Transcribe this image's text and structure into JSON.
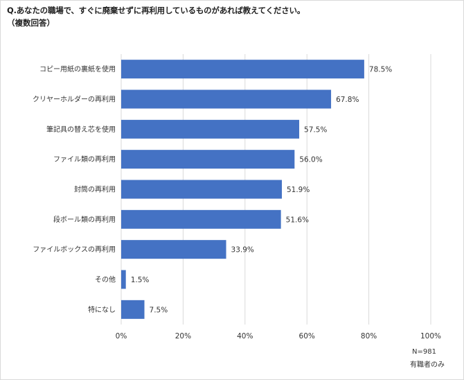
{
  "header": {
    "title": "Q.あなたの職場で、すぐに廃棄せずに再利用しているものがあれば教えてください。",
    "subtitle": "（複数回答）"
  },
  "footer": {
    "sample_size": "N=981",
    "population": "有職者のみ"
  },
  "colors": {
    "bar": "#4472c4",
    "grid": "#d9d9d9"
  },
  "chart_data": {
    "type": "bar",
    "orientation": "horizontal",
    "title": "Q.あなたの職場で、すぐに廃棄せずに再利用しているものがあれば教えてください。",
    "categories": [
      "コピー用紙の裏紙を使用",
      "クリヤーホルダーの再利用",
      "筆記具の替え芯を使用",
      "ファイル類の再利用",
      "封筒の再利用",
      "段ボール類の再利用",
      "ファイルボックスの再利用",
      "その他",
      "特になし"
    ],
    "values": [
      78.5,
      67.8,
      57.5,
      56.0,
      51.9,
      51.6,
      33.9,
      1.5,
      7.5
    ],
    "value_labels": [
      "78.5%",
      "67.8%",
      "57.5%",
      "56.0%",
      "51.9%",
      "51.6%",
      "33.9%",
      "1.5%",
      "7.5%"
    ],
    "xlim": [
      0,
      100
    ],
    "xticks": [
      0,
      20,
      40,
      60,
      80,
      100
    ],
    "xtick_labels": [
      "0%",
      "20%",
      "40%",
      "60%",
      "80%",
      "100%"
    ],
    "xlabel": "",
    "ylabel": "",
    "grid": true,
    "legend": "none"
  }
}
